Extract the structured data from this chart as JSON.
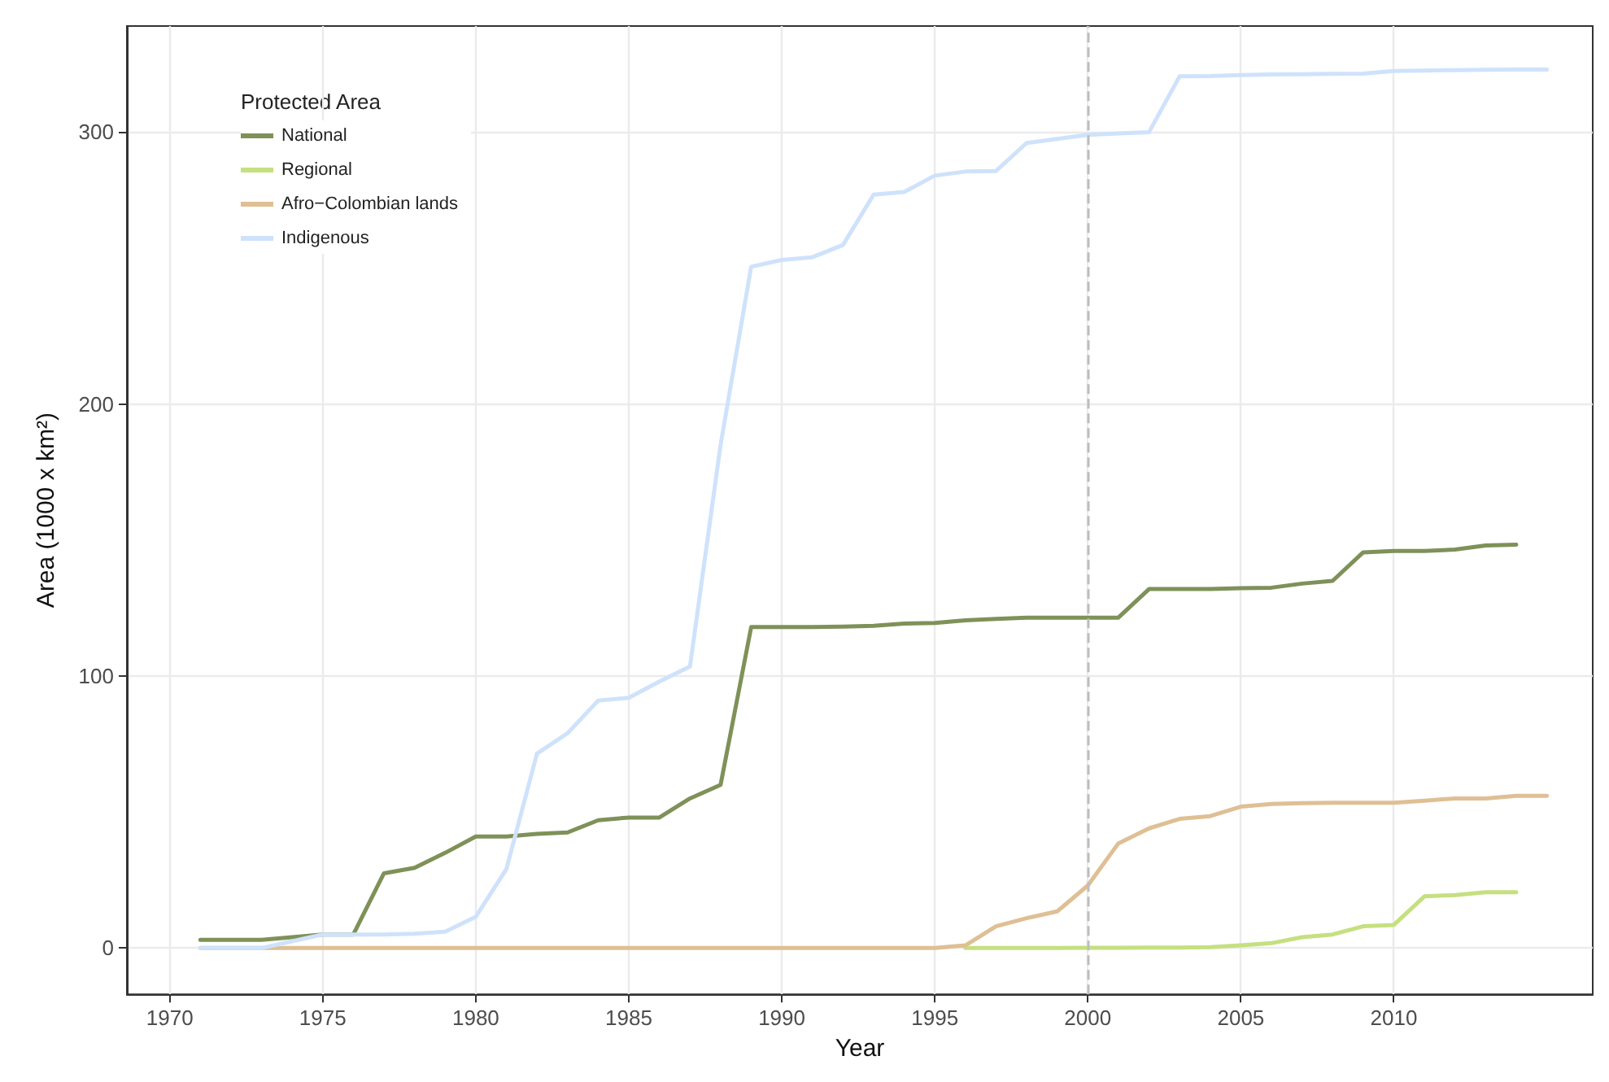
{
  "chart_data": {
    "type": "line",
    "xlabel": "Year",
    "ylabel": "Area (1000 x km²)",
    "legend_title": "Protected Area",
    "legend": "top left",
    "grid": true,
    "line_style": "solid",
    "marker": "none",
    "x": [
      1971,
      1972,
      1973,
      1974,
      1975,
      1976,
      1977,
      1978,
      1979,
      1980,
      1981,
      1982,
      1983,
      1984,
      1985,
      1986,
      1987,
      1988,
      1989,
      1990,
      1991,
      1992,
      1993,
      1994,
      1995,
      1996,
      1997,
      1998,
      1999,
      2000,
      2001,
      2002,
      2003,
      2004,
      2005,
      2006,
      2007,
      2008,
      2009,
      2010,
      2011,
      2012,
      2013,
      2014,
      2015
    ],
    "xlim": [
      1968.6,
      2016.5
    ],
    "xticks": [
      1970,
      1975,
      1980,
      1985,
      1990,
      1995,
      2000,
      2005,
      2010
    ],
    "ylim": [
      -17,
      339
    ],
    "yticks": [
      0,
      100,
      200,
      300
    ],
    "ref_lines": [
      {
        "axis": "x",
        "value": 2000,
        "color": "#bdbdbd",
        "line_style": "dashed"
      }
    ],
    "series": [
      {
        "name": "National",
        "color": "#7f9158",
        "values": [
          3,
          3,
          3,
          4,
          5,
          5,
          27.5,
          29.5,
          35,
          41,
          41,
          42,
          42.5,
          47,
          48,
          48,
          55,
          60,
          118,
          118,
          118,
          118.2,
          118.5,
          119.3,
          119.5,
          120.5,
          121,
          121.5,
          121.5,
          121.5,
          121.5,
          132,
          132,
          132,
          132.3,
          132.5,
          134,
          135,
          145.5,
          146,
          146,
          146.5,
          148,
          148.3,
          null
        ]
      },
      {
        "name": "Regional",
        "color": "#c5e07f",
        "values": [
          null,
          null,
          null,
          null,
          null,
          null,
          null,
          null,
          null,
          null,
          null,
          null,
          null,
          null,
          null,
          null,
          null,
          null,
          null,
          null,
          null,
          null,
          null,
          null,
          null,
          0,
          0,
          0,
          0,
          0.1,
          0.1,
          0.2,
          0.2,
          0.3,
          1,
          1.8,
          4,
          5,
          8,
          8.5,
          19,
          19.5,
          20.5,
          20.5,
          null
        ]
      },
      {
        "name": "Afro−Colombian lands",
        "color": "#dfbf94",
        "values": [
          0,
          0,
          0,
          0,
          0,
          0,
          0,
          0,
          0,
          0,
          0,
          0,
          0,
          0,
          0,
          0,
          0,
          0,
          0,
          0,
          0,
          0,
          0,
          0,
          0,
          1,
          8,
          11,
          13.5,
          23,
          38.5,
          44,
          47.5,
          48.5,
          52,
          53,
          53.3,
          53.4,
          53.4,
          53.4,
          54.2,
          55,
          55,
          56,
          56
        ]
      },
      {
        "name": "Indigenous",
        "color": "#cfe2fb",
        "values": [
          0,
          0,
          0,
          2.5,
          5,
          5,
          5,
          5.3,
          6,
          11.5,
          29,
          71.5,
          79,
          91,
          92,
          98,
          103.5,
          185,
          250.5,
          253,
          254,
          258.5,
          277,
          278,
          284,
          285.5,
          285.7,
          296,
          297.5,
          299,
          299.5,
          300,
          320.5,
          320.6,
          321,
          321.2,
          321.3,
          321.4,
          321.5,
          322.5,
          322.6,
          322.8,
          322.9,
          323,
          323
        ]
      }
    ]
  }
}
